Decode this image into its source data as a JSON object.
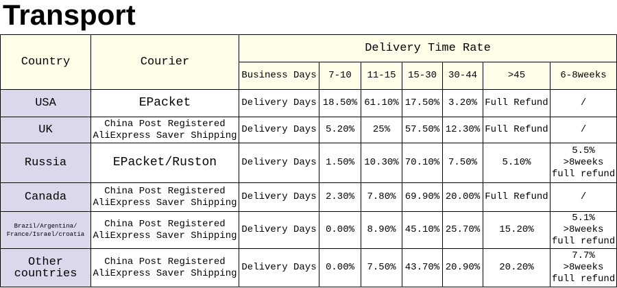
{
  "header": {
    "title": "Transport"
  },
  "table": {
    "country_header": "Country",
    "courier_header": "Courier",
    "group_header": "Delivery Time Rate",
    "sub_headers": [
      "Business Days",
      "7-10",
      "11-15",
      "15-30",
      "30-44",
      ">45",
      "6-8weeks"
    ],
    "rows": [
      [
        "USA",
        "EPacket",
        "Delivery Days",
        "18.50%",
        "61.10%",
        "17.50%",
        "3.20%",
        "Full Refund",
        "/"
      ],
      [
        "UK",
        "China Post Registered\nAliExpress Saver Shipping",
        "Delivery Days",
        "5.20%",
        "25%",
        "57.50%",
        "12.30%",
        "Full Refund",
        "/"
      ],
      [
        "Russia",
        "EPacket/Ruston",
        "Delivery Days",
        "1.50%",
        "10.30%",
        "70.10%",
        "7.50%",
        "5.10%",
        "5.5%\n>8weeks\nfull refund"
      ],
      [
        "Canada",
        "China Post Registered\nAliExpress Saver Shipping",
        "Delivery Days",
        "2.30%",
        "7.80%",
        "69.90%",
        "20.00%",
        "Full Refund",
        "/"
      ],
      [
        "Brazil/Argentina/\nFrance/Israel/croatia",
        "China Post Registered\nAliExpress Saver Shipping",
        "Delivery Days",
        "0.00%",
        "8.90%",
        "45.10%",
        "25.70%",
        "15.20%",
        "5.1%\n>8weeks\nfull refund"
      ],
      [
        "Other countries",
        "China Post Registered\nAliExpress Saver Shipping",
        "Delivery Days",
        "0.00%",
        "7.50%",
        "43.70%",
        "20.90%",
        "20.20%",
        "7.7%\n>8weeks\nfull refund"
      ]
    ]
  }
}
